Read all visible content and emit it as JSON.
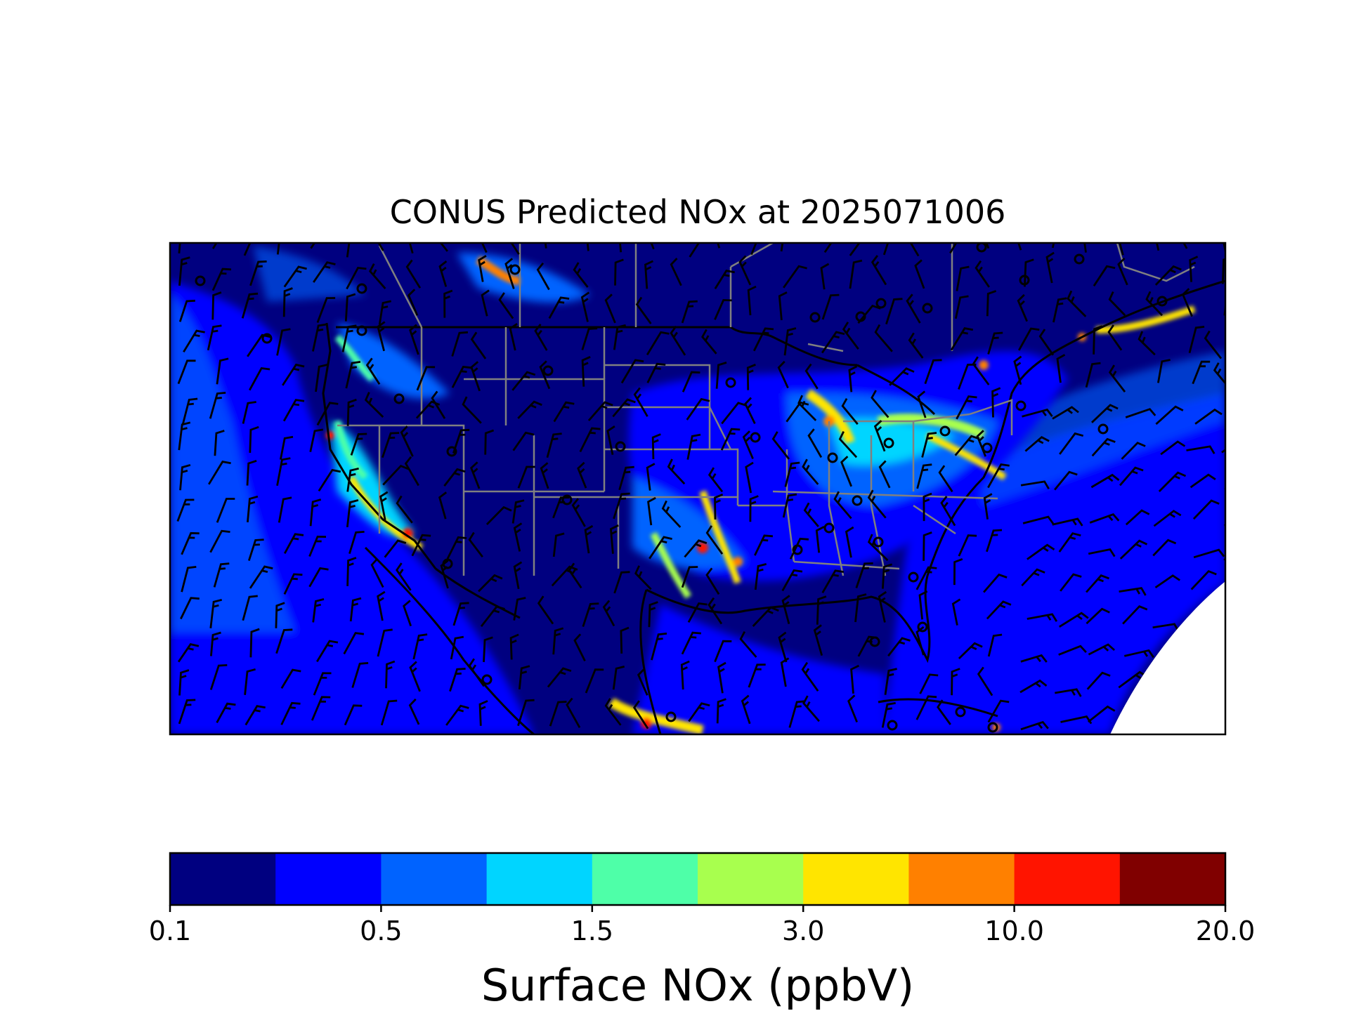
{
  "title": "CONUS Predicted NOx at 2025071006",
  "map": {
    "description_type": "filled-contour map with wind barbs",
    "background": "#000080",
    "state_boundary_color": "#808080",
    "coastline_color": "#000000",
    "missing_region_color": "#ffffff"
  },
  "colorbar": {
    "label": "Surface NOx (ppbV)",
    "levels": [
      "0.1",
      "0.5",
      "1.5",
      "3.0",
      "10.0",
      "20.0"
    ],
    "colors": [
      "#000080",
      "#0000ff",
      "#0063ff",
      "#00d5ff",
      "#4effa8",
      "#a8ff4e",
      "#ffe500",
      "#ff8000",
      "#ff1400",
      "#800000"
    ]
  },
  "chart_data": {
    "type": "heatmap",
    "title": "CONUS Predicted NOx at 2025071006",
    "colorbar_label": "Surface NOx (ppbV)",
    "colorbar_tick_labels": [
      "0.1",
      "0.5",
      "1.5",
      "3.0",
      "10.0",
      "20.0"
    ],
    "n_color_bins": 10,
    "colormap": "jet"
  }
}
